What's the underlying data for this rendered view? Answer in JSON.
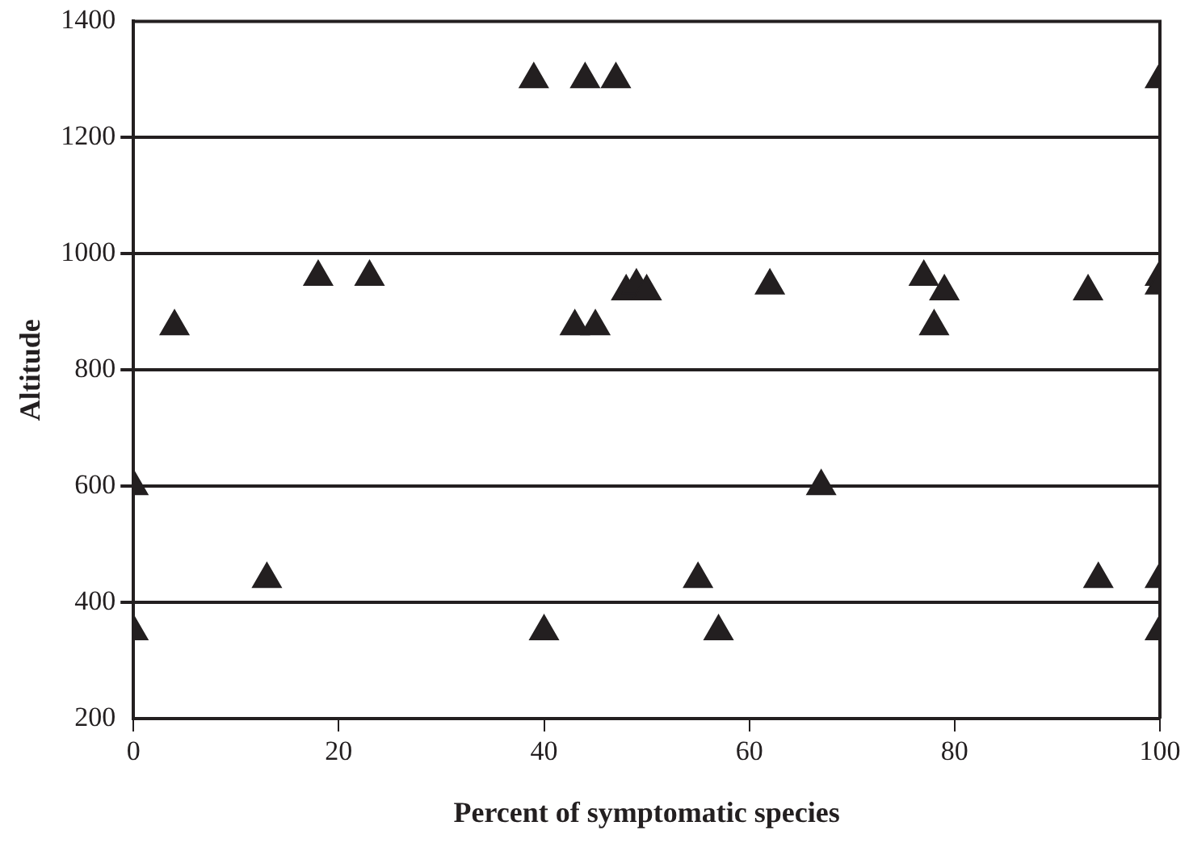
{
  "chart_data": {
    "type": "scatter",
    "xlabel": "Percent of symptomatic species",
    "ylabel": "Altitude",
    "xlim": [
      0,
      100
    ],
    "xticks": [
      0,
      20,
      40,
      60,
      80,
      100
    ],
    "ylim": [
      200,
      1400
    ],
    "yticks": [
      200,
      400,
      600,
      800,
      1000,
      1200,
      1400
    ],
    "grid": "y",
    "legend": false,
    "marker": "triangle",
    "series": [
      {
        "color": "#231f20",
        "x": [
          0,
          0,
          4,
          13,
          18,
          23,
          39,
          40,
          43,
          45,
          44,
          47,
          48,
          49,
          50,
          55,
          57,
          62,
          67,
          77,
          78,
          79,
          93,
          94,
          100,
          100,
          100,
          100,
          100
        ],
        "values": [
          350,
          600,
          875,
          440,
          960,
          960,
          1300,
          350,
          875,
          875,
          1300,
          1300,
          935,
          945,
          935,
          440,
          350,
          945,
          600,
          960,
          875,
          935,
          935,
          440,
          1300,
          960,
          945,
          440,
          350
        ]
      }
    ]
  }
}
